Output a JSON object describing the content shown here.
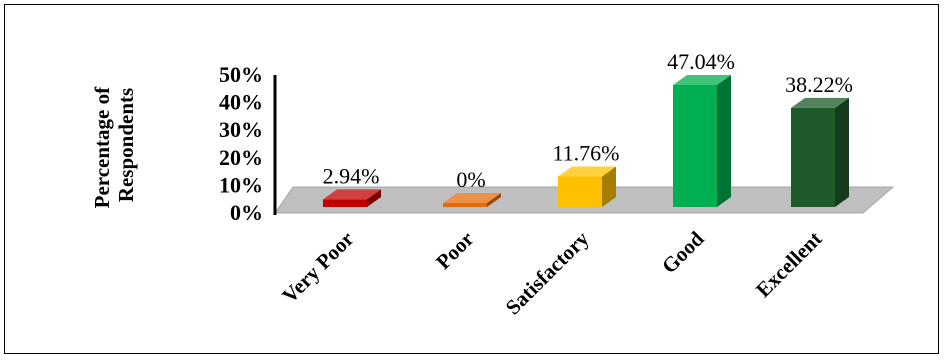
{
  "chart_data": {
    "type": "bar",
    "ylabel": [
      "Percentage of",
      "Respondents"
    ],
    "categories": [
      "Very Poor",
      "Poor",
      "Satisfactory",
      "Good",
      "Excellent"
    ],
    "values": [
      2.94,
      0,
      11.76,
      47.04,
      38.22
    ],
    "data_labels": [
      "2.94%",
      "0%",
      "11.76%",
      "47.04%",
      "38.22%"
    ],
    "colors": [
      "#c00000",
      "#e36c09",
      "#ffc000",
      "#00b050",
      "#1e5a2a"
    ],
    "ytick_labels": [
      "0%",
      "10%",
      "20%",
      "30%",
      "40%",
      "50%"
    ],
    "ylim": [
      0,
      50
    ],
    "style": "3d-column",
    "grid": false,
    "legend": "none"
  }
}
